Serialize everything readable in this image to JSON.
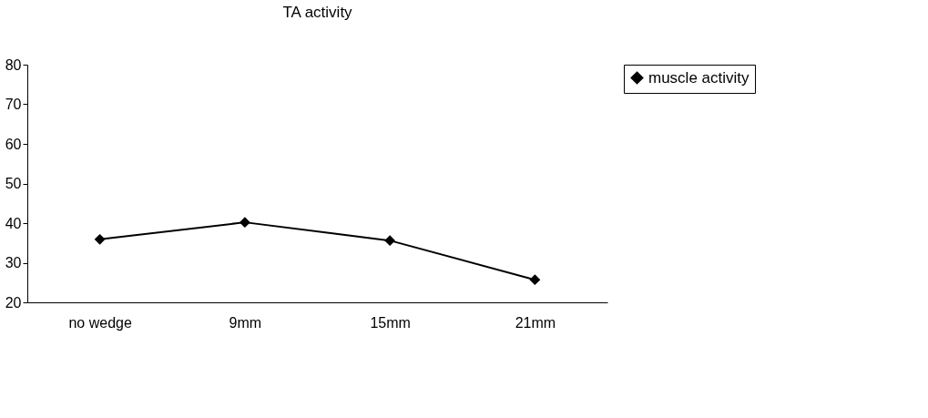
{
  "chart_data": {
    "type": "line",
    "title": "TA activity",
    "categories": [
      "no wedge",
      "9mm",
      "15mm",
      "21mm"
    ],
    "series": [
      {
        "name": "muscle activity",
        "color": "#000000",
        "values": [
          35.9,
          40.2,
          35.6,
          25.7
        ]
      }
    ],
    "ylim": [
      20,
      80
    ],
    "yticks": [
      20,
      30,
      40,
      50,
      60,
      70,
      80
    ],
    "grid": false,
    "legend": "right",
    "marker": "diamond",
    "line_style": "solid"
  }
}
